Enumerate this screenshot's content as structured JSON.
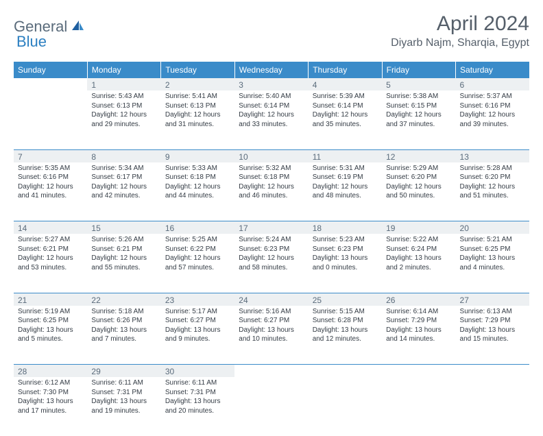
{
  "brand": {
    "name_gray": "General",
    "name_blue": "Blue"
  },
  "title": "April 2024",
  "location": "Diyarb Najm, Sharqia, Egypt",
  "headers": [
    "Sunday",
    "Monday",
    "Tuesday",
    "Wednesday",
    "Thursday",
    "Friday",
    "Saturday"
  ],
  "colors": {
    "header_bg": "#3a8bc9",
    "header_fg": "#ffffff",
    "daynum_bg": "#edf0f2",
    "rule": "#3a8bc9",
    "title_fg": "#555f6a",
    "logo_gray": "#5a6b7b",
    "logo_blue": "#2b7fc1"
  },
  "weeks": [
    [
      null,
      {
        "n": "1",
        "sr": "Sunrise: 5:43 AM",
        "ss": "Sunset: 6:13 PM",
        "d1": "Daylight: 12 hours",
        "d2": "and 29 minutes."
      },
      {
        "n": "2",
        "sr": "Sunrise: 5:41 AM",
        "ss": "Sunset: 6:13 PM",
        "d1": "Daylight: 12 hours",
        "d2": "and 31 minutes."
      },
      {
        "n": "3",
        "sr": "Sunrise: 5:40 AM",
        "ss": "Sunset: 6:14 PM",
        "d1": "Daylight: 12 hours",
        "d2": "and 33 minutes."
      },
      {
        "n": "4",
        "sr": "Sunrise: 5:39 AM",
        "ss": "Sunset: 6:14 PM",
        "d1": "Daylight: 12 hours",
        "d2": "and 35 minutes."
      },
      {
        "n": "5",
        "sr": "Sunrise: 5:38 AM",
        "ss": "Sunset: 6:15 PM",
        "d1": "Daylight: 12 hours",
        "d2": "and 37 minutes."
      },
      {
        "n": "6",
        "sr": "Sunrise: 5:37 AM",
        "ss": "Sunset: 6:16 PM",
        "d1": "Daylight: 12 hours",
        "d2": "and 39 minutes."
      }
    ],
    [
      {
        "n": "7",
        "sr": "Sunrise: 5:35 AM",
        "ss": "Sunset: 6:16 PM",
        "d1": "Daylight: 12 hours",
        "d2": "and 41 minutes."
      },
      {
        "n": "8",
        "sr": "Sunrise: 5:34 AM",
        "ss": "Sunset: 6:17 PM",
        "d1": "Daylight: 12 hours",
        "d2": "and 42 minutes."
      },
      {
        "n": "9",
        "sr": "Sunrise: 5:33 AM",
        "ss": "Sunset: 6:18 PM",
        "d1": "Daylight: 12 hours",
        "d2": "and 44 minutes."
      },
      {
        "n": "10",
        "sr": "Sunrise: 5:32 AM",
        "ss": "Sunset: 6:18 PM",
        "d1": "Daylight: 12 hours",
        "d2": "and 46 minutes."
      },
      {
        "n": "11",
        "sr": "Sunrise: 5:31 AM",
        "ss": "Sunset: 6:19 PM",
        "d1": "Daylight: 12 hours",
        "d2": "and 48 minutes."
      },
      {
        "n": "12",
        "sr": "Sunrise: 5:29 AM",
        "ss": "Sunset: 6:20 PM",
        "d1": "Daylight: 12 hours",
        "d2": "and 50 minutes."
      },
      {
        "n": "13",
        "sr": "Sunrise: 5:28 AM",
        "ss": "Sunset: 6:20 PM",
        "d1": "Daylight: 12 hours",
        "d2": "and 51 minutes."
      }
    ],
    [
      {
        "n": "14",
        "sr": "Sunrise: 5:27 AM",
        "ss": "Sunset: 6:21 PM",
        "d1": "Daylight: 12 hours",
        "d2": "and 53 minutes."
      },
      {
        "n": "15",
        "sr": "Sunrise: 5:26 AM",
        "ss": "Sunset: 6:21 PM",
        "d1": "Daylight: 12 hours",
        "d2": "and 55 minutes."
      },
      {
        "n": "16",
        "sr": "Sunrise: 5:25 AM",
        "ss": "Sunset: 6:22 PM",
        "d1": "Daylight: 12 hours",
        "d2": "and 57 minutes."
      },
      {
        "n": "17",
        "sr": "Sunrise: 5:24 AM",
        "ss": "Sunset: 6:23 PM",
        "d1": "Daylight: 12 hours",
        "d2": "and 58 minutes."
      },
      {
        "n": "18",
        "sr": "Sunrise: 5:23 AM",
        "ss": "Sunset: 6:23 PM",
        "d1": "Daylight: 13 hours",
        "d2": "and 0 minutes."
      },
      {
        "n": "19",
        "sr": "Sunrise: 5:22 AM",
        "ss": "Sunset: 6:24 PM",
        "d1": "Daylight: 13 hours",
        "d2": "and 2 minutes."
      },
      {
        "n": "20",
        "sr": "Sunrise: 5:21 AM",
        "ss": "Sunset: 6:25 PM",
        "d1": "Daylight: 13 hours",
        "d2": "and 4 minutes."
      }
    ],
    [
      {
        "n": "21",
        "sr": "Sunrise: 5:19 AM",
        "ss": "Sunset: 6:25 PM",
        "d1": "Daylight: 13 hours",
        "d2": "and 5 minutes."
      },
      {
        "n": "22",
        "sr": "Sunrise: 5:18 AM",
        "ss": "Sunset: 6:26 PM",
        "d1": "Daylight: 13 hours",
        "d2": "and 7 minutes."
      },
      {
        "n": "23",
        "sr": "Sunrise: 5:17 AM",
        "ss": "Sunset: 6:27 PM",
        "d1": "Daylight: 13 hours",
        "d2": "and 9 minutes."
      },
      {
        "n": "24",
        "sr": "Sunrise: 5:16 AM",
        "ss": "Sunset: 6:27 PM",
        "d1": "Daylight: 13 hours",
        "d2": "and 10 minutes."
      },
      {
        "n": "25",
        "sr": "Sunrise: 5:15 AM",
        "ss": "Sunset: 6:28 PM",
        "d1": "Daylight: 13 hours",
        "d2": "and 12 minutes."
      },
      {
        "n": "26",
        "sr": "Sunrise: 6:14 AM",
        "ss": "Sunset: 7:29 PM",
        "d1": "Daylight: 13 hours",
        "d2": "and 14 minutes."
      },
      {
        "n": "27",
        "sr": "Sunrise: 6:13 AM",
        "ss": "Sunset: 7:29 PM",
        "d1": "Daylight: 13 hours",
        "d2": "and 15 minutes."
      }
    ],
    [
      {
        "n": "28",
        "sr": "Sunrise: 6:12 AM",
        "ss": "Sunset: 7:30 PM",
        "d1": "Daylight: 13 hours",
        "d2": "and 17 minutes."
      },
      {
        "n": "29",
        "sr": "Sunrise: 6:11 AM",
        "ss": "Sunset: 7:31 PM",
        "d1": "Daylight: 13 hours",
        "d2": "and 19 minutes."
      },
      {
        "n": "30",
        "sr": "Sunrise: 6:11 AM",
        "ss": "Sunset: 7:31 PM",
        "d1": "Daylight: 13 hours",
        "d2": "and 20 minutes."
      },
      null,
      null,
      null,
      null
    ]
  ]
}
